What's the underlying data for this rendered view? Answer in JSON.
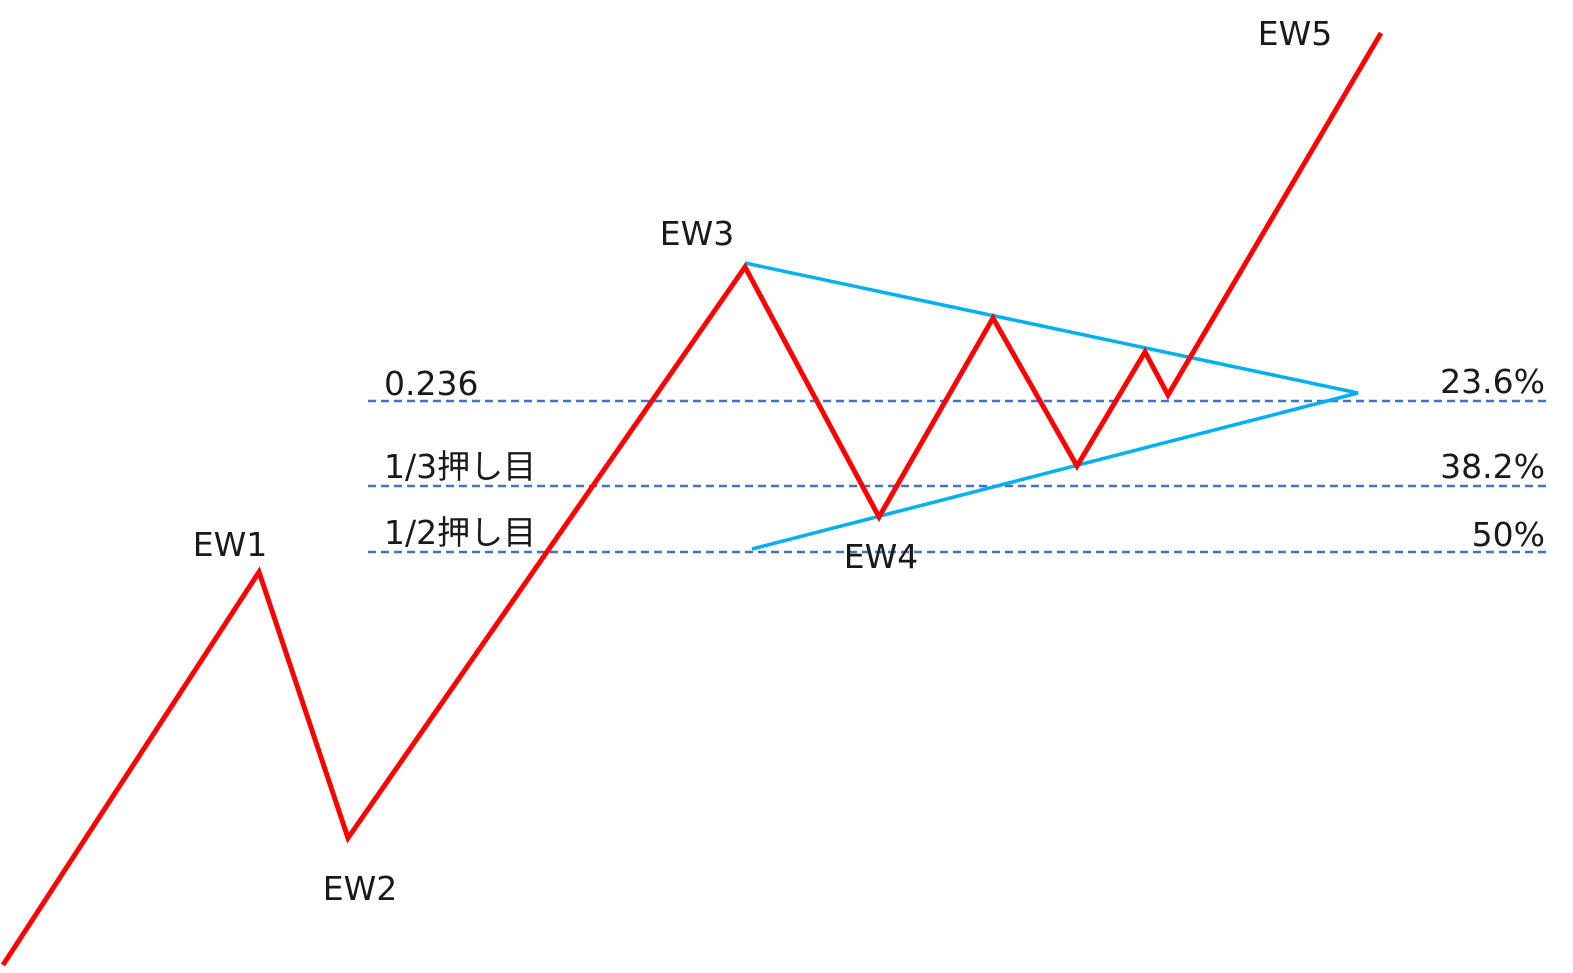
{
  "colors": {
    "wave": "#ff0000",
    "triangle": "#00b0f0",
    "levels": "#4472c4",
    "text": "#1a1a1a"
  },
  "waves": {
    "labels": [
      "EW1",
      "EW2",
      "EW3",
      "EW4",
      "EW5"
    ]
  },
  "levels": [
    {
      "left_label": "0.236",
      "right_label": "23.6%"
    },
    {
      "left_label": "1/3押し目",
      "right_label": "38.2%"
    },
    {
      "left_label": "1/2押し目",
      "right_label": "50%"
    }
  ]
}
